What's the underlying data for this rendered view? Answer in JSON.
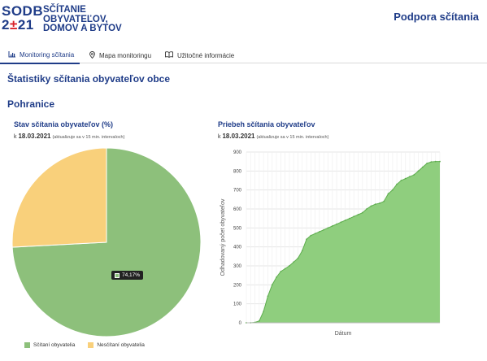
{
  "header": {
    "logo_line1_a": "SODB",
    "logo_line2_a": "2",
    "logo_line2_b": "±",
    "logo_line2_c": "21",
    "logo_text_1": "SČÍTANIE",
    "logo_text_2": "OBYVATEĽOV,",
    "logo_text_3": "DOMOV A BYTOV",
    "support_link": "Podpora sčítania"
  },
  "tabs": [
    {
      "label": "Monitoring sčítania",
      "icon": "chart-icon",
      "active": true
    },
    {
      "label": "Mapa monitoringu",
      "icon": "map-pin-icon",
      "active": false
    },
    {
      "label": "Užitočné informácie",
      "icon": "book-icon",
      "active": false
    }
  ],
  "page_title": "Štatistiky sčítania obyvateľov obce",
  "municipality": "Pohranice",
  "pie_chart": {
    "title": "Stav sčítania obyvateľov (%)",
    "date_prefix": "k",
    "date": "18.03.2021",
    "note": "(aktualizuje sa v 15 min. intervaloch)",
    "tooltip": "74,17%",
    "legend": [
      "Sčítaní obyvatelia",
      "Nesčítaní obyvatelia"
    ]
  },
  "line_chart": {
    "title": "Priebeh sčítania obyvateľov",
    "date_prefix": "k",
    "date": "18.03.2021",
    "note": "(aktualizuje sa v 15 min. intervaloch)"
  },
  "colors": {
    "brand": "#1f3c88",
    "accent_red": "#d8232a",
    "counted": "#8dc07b",
    "not_counted": "#f9d07b",
    "area_fill": "#8fce7e",
    "area_line": "#5fae4f"
  },
  "chart_data": [
    {
      "type": "pie",
      "title": "Stav sčítania obyvateľov (%)",
      "series": [
        {
          "name": "Sčítaní obyvatelia",
          "value": 74.17
        },
        {
          "name": "Nesčítaní obyvatelia",
          "value": 25.83
        }
      ],
      "legend_position": "bottom"
    },
    {
      "type": "area",
      "title": "Priebeh sčítania obyvateľov",
      "xlabel": "Dátum",
      "ylabel": "Odhadovaný počet obyvateľov",
      "ylim": [
        0,
        900
      ],
      "yticks": [
        0,
        100,
        200,
        300,
        400,
        500,
        600,
        700,
        800,
        900
      ],
      "grid": true,
      "values": [
        0,
        0,
        2,
        10,
        60,
        140,
        200,
        240,
        270,
        285,
        300,
        320,
        340,
        380,
        440,
        460,
        470,
        480,
        490,
        500,
        510,
        520,
        530,
        540,
        550,
        560,
        570,
        580,
        600,
        615,
        625,
        630,
        640,
        680,
        700,
        730,
        750,
        760,
        770,
        780,
        800,
        820,
        840,
        848,
        850,
        850
      ]
    }
  ]
}
